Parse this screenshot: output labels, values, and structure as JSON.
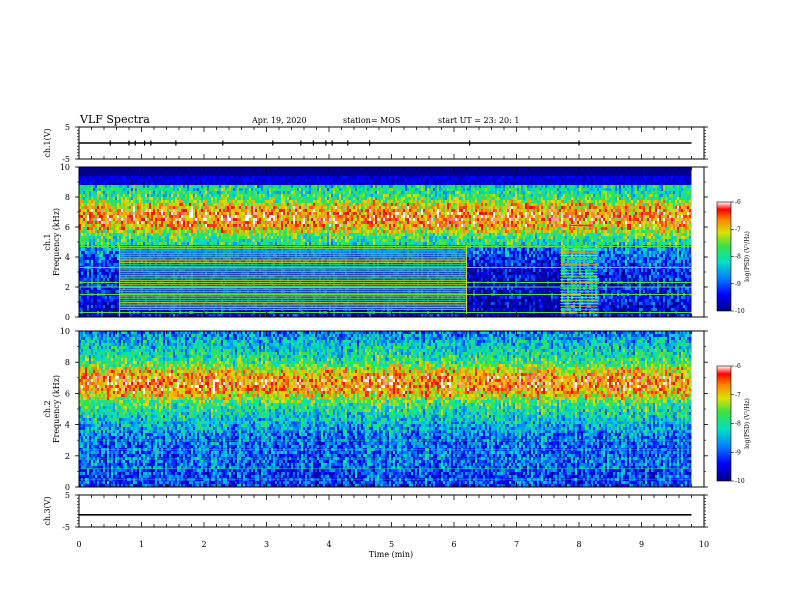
{
  "header": {
    "title": "VLF Spectra",
    "date": "Apr. 19, 2020",
    "station": "station= MOS",
    "start": "start  UT =   23: 20: 1"
  },
  "chart_data": [
    {
      "type": "line",
      "id": "ch1v",
      "ylabel": "ch.1(V)",
      "ylim": [
        -5,
        5
      ],
      "yticks": [
        "5",
        "-5"
      ],
      "series": [
        {
          "name": "",
          "x": [
            0,
            9.8
          ],
          "values": [
            0,
            0
          ]
        }
      ],
      "spike_times": [
        0.5,
        0.8,
        0.9,
        1.05,
        1.15,
        1.55,
        2.3,
        3.1,
        3.55,
        3.75,
        3.95,
        4.05,
        4.3,
        4.65,
        6.25,
        8.0
      ]
    },
    {
      "type": "heatmap",
      "id": "ch1",
      "ylabel": "ch.1\nFrequency (kHz)",
      "ylabel_lines": [
        "ch.1",
        "Frequency (kHz)"
      ],
      "ylim": [
        0,
        10
      ],
      "yticks": [
        "0",
        "2",
        "4",
        "6",
        "8",
        "10"
      ],
      "colorbar": {
        "label": "log(PSD) (V²/Hz)",
        "range": [
          -10,
          -6
        ],
        "ticks": [
          "-6",
          "-7",
          "-8",
          "-9",
          "-10"
        ]
      },
      "strong_band_khz": [
        5.5,
        8.0
      ],
      "dark_band_khz": [
        9.0,
        10.0
      ],
      "lines_region_min": [
        0.65,
        6.2
      ],
      "lines_region_khz": [
        0.5,
        4.8
      ],
      "burst_region_min": [
        7.7,
        8.3
      ]
    },
    {
      "type": "heatmap",
      "id": "ch2",
      "ylabel": "ch.2\nFrequency (kHz)",
      "ylabel_lines": [
        "ch.2",
        "Frequency (kHz)"
      ],
      "ylim": [
        0,
        10
      ],
      "yticks": [
        "0",
        "2",
        "4",
        "6",
        "8",
        "10"
      ],
      "colorbar": {
        "label": "log(PSD) (V²/Hz)",
        "range": [
          -10,
          -6
        ],
        "ticks": [
          "-6",
          "-7",
          "-8",
          "-9",
          "-10"
        ]
      },
      "strong_band_khz": [
        5.5,
        8.0
      ]
    },
    {
      "type": "line",
      "id": "ch3v",
      "ylabel": "ch.3(V)",
      "ylim": [
        -5,
        5
      ],
      "yticks": [
        "5",
        "-5"
      ],
      "series": [
        {
          "name": "",
          "x": [
            0,
            9.8
          ],
          "values": [
            -1.2,
            -1.2
          ]
        }
      ]
    }
  ],
  "xaxis": {
    "label": "Time (min)",
    "range": [
      0,
      10
    ],
    "ticks": [
      "0",
      "1",
      "2",
      "3",
      "4",
      "5",
      "6",
      "7",
      "8",
      "9",
      "10"
    ]
  }
}
